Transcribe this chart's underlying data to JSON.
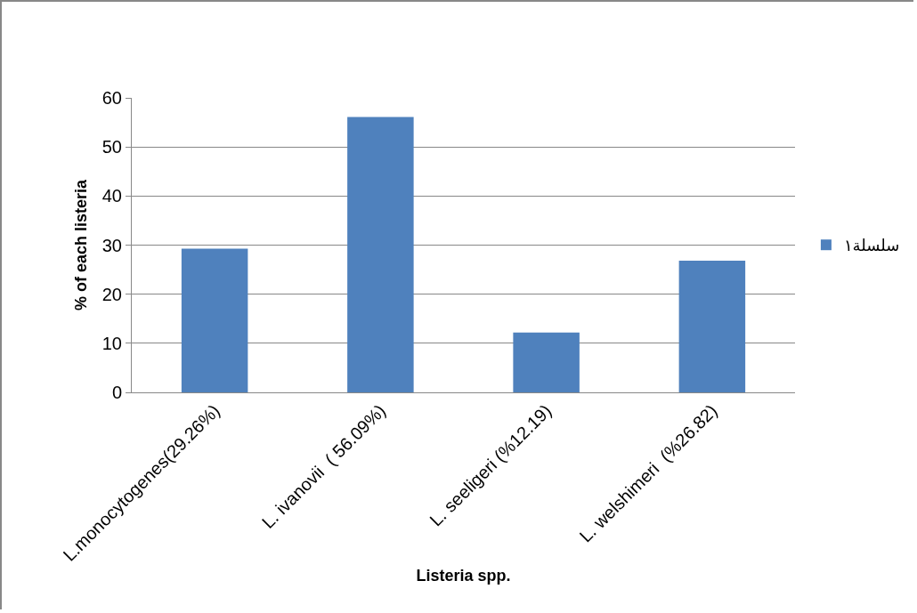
{
  "chart_data": {
    "type": "bar",
    "xlabel": "Listeria spp.",
    "ylabel": "% of each listeria",
    "categories": [
      "L.monocytogenes(29.26%)",
      "L. ivanovii  ( 56.09%)",
      "L. seeligeri (%12.19)",
      "L. welshimeri  (%26.82)"
    ],
    "series": [
      {
        "name": "سلسلة١",
        "color": "#4f81bd",
        "values": [
          29.26,
          56.09,
          12.19,
          26.82
        ]
      }
    ],
    "ylim": [
      0,
      60
    ],
    "yticks": [
      0,
      10,
      20,
      30,
      40,
      50,
      60
    ],
    "grid": "y",
    "legend": "right"
  }
}
